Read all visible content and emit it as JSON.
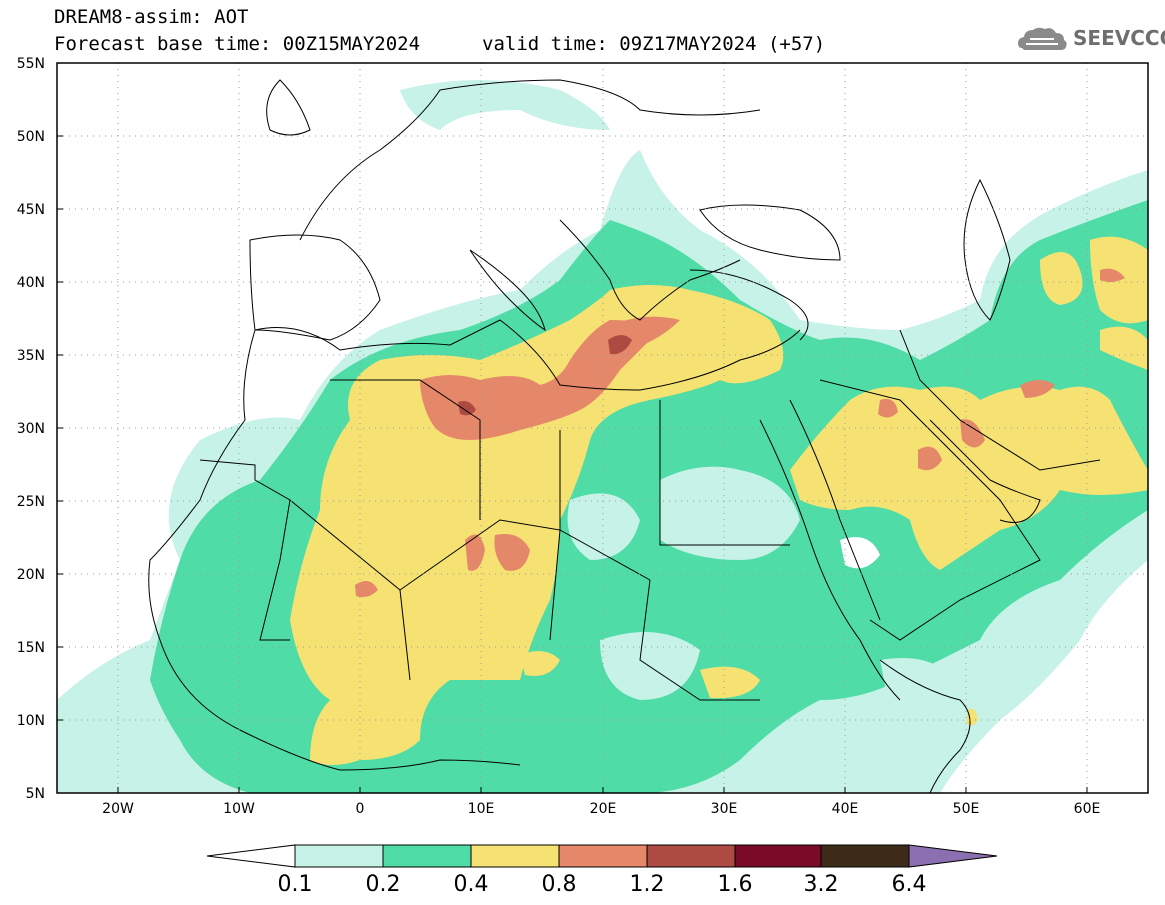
{
  "header": {
    "line1": "DREAM8-assim: AOT",
    "line2_left": "Forecast base time: 00Z15MAY2024",
    "line2_right": "valid time: 09Z17MAY2024 (+57)"
  },
  "logo": {
    "text": "SEEVCCC",
    "icon": "cloud-icon"
  },
  "map": {
    "lat_labels": [
      "55N",
      "50N",
      "45N",
      "40N",
      "35N",
      "30N",
      "25N",
      "20N",
      "15N",
      "10N",
      "5N"
    ],
    "lon_labels": [
      "20W",
      "10W",
      "0",
      "10E",
      "20E",
      "30E",
      "40E",
      "50E",
      "60E"
    ],
    "extent": {
      "lon": [
        -25,
        65
      ],
      "lat": [
        5,
        55
      ]
    },
    "grid": "dotted",
    "field": "Aerosol Optical Thickness (AOT)"
  },
  "colorbar": {
    "levels": [
      "0.1",
      "0.2",
      "0.4",
      "0.8",
      "1.2",
      "1.6",
      "3.2",
      "6.4"
    ],
    "colors": [
      "#ffffff",
      "#c6f2e8",
      "#4fdca6",
      "#f5e273",
      "#e5886a",
      "#ad4a41",
      "#7a0a28",
      "#3d2a18",
      "#8c6fb0"
    ]
  },
  "palette": {
    "aot_01_02": "#c6f2e8",
    "aot_02_04": "#4fdca6",
    "aot_04_08": "#f5e273",
    "aot_08_12": "#e5886a",
    "aot_12_16": "#ad4a41"
  }
}
